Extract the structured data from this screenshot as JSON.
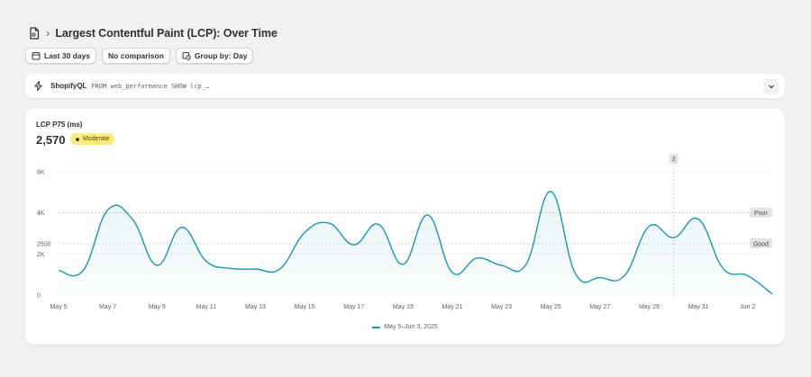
{
  "header": {
    "page_icon": "page-icon",
    "title": "Largest Contentful Paint (LCP): Over Time"
  },
  "filters": {
    "date_range": "Last 30 days",
    "comparison": "No comparison",
    "group_by": "Group by: Day"
  },
  "query": {
    "label": "ShopifyQL",
    "text": "FROM web_performance SHOW lcp_…"
  },
  "metric": {
    "label": "LCP P75 (ms)",
    "value": "2,570",
    "badge": "Moderate"
  },
  "colors": {
    "line": "#1598b1",
    "badge_bg": "#ffeb78"
  },
  "chart_data": {
    "type": "line",
    "ylim": [
      0,
      6000
    ],
    "y_ticks": [
      {
        "value": 0,
        "label": "0"
      },
      {
        "value": 2000,
        "label": "2K"
      },
      {
        "value": 2500,
        "label": "2500"
      },
      {
        "value": 4000,
        "label": "4K"
      },
      {
        "value": 6000,
        "label": "6K"
      }
    ],
    "thresholds": [
      {
        "value": 4000,
        "label": "Poor"
      },
      {
        "value": 2500,
        "label": "Good"
      }
    ],
    "x_tick_labels": [
      "May 5",
      "May 7",
      "May 9",
      "May 11",
      "May 13",
      "May 15",
      "May 17",
      "May 19",
      "May 21",
      "May 23",
      "May 25",
      "May 27",
      "May 29",
      "May 31",
      "Jun 2"
    ],
    "hover_marker": {
      "x": "May 30",
      "label": "2"
    },
    "series": [
      {
        "name": "May 5–Jun 3, 2025",
        "x": [
          "May 5",
          "May 6",
          "May 7",
          "May 8",
          "May 9",
          "May 10",
          "May 11",
          "May 12",
          "May 13",
          "May 14",
          "May 15",
          "May 16",
          "May 17",
          "May 18",
          "May 19",
          "May 20",
          "May 21",
          "May 22",
          "May 23",
          "May 24",
          "May 25",
          "May 26",
          "May 27",
          "May 28",
          "May 29",
          "May 30",
          "May 31",
          "Jun 1",
          "Jun 2",
          "Jun 3"
        ],
        "values": [
          1200,
          1200,
          4150,
          3700,
          1450,
          3300,
          1650,
          1300,
          1270,
          1280,
          3050,
          3500,
          2450,
          3450,
          1500,
          3900,
          1100,
          1800,
          1450,
          1500,
          5050,
          1050,
          850,
          950,
          3350,
          2800,
          3700,
          1300,
          950,
          50
        ]
      }
    ]
  }
}
